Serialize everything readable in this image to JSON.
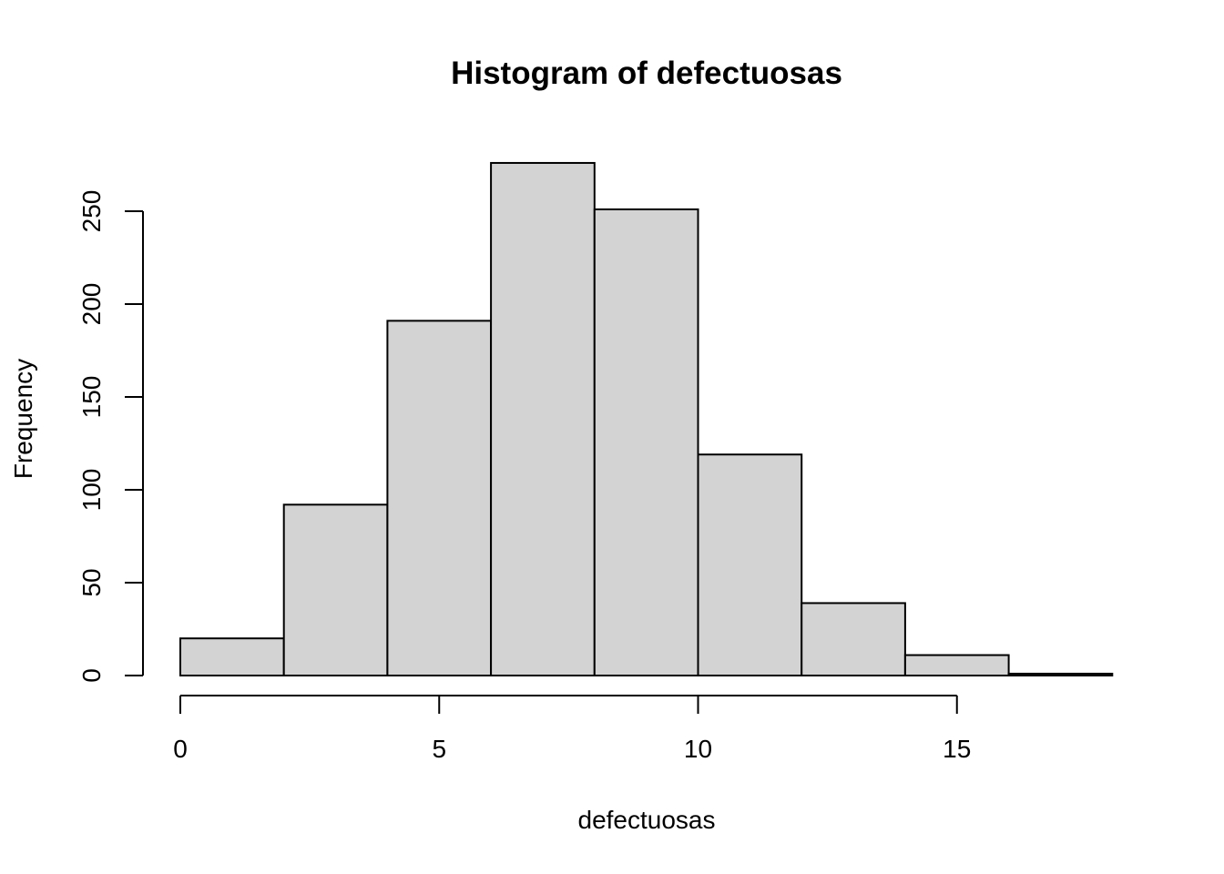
{
  "chart_data": {
    "type": "bar",
    "title": "Histogram of defectuosas",
    "xlabel": "defectuosas",
    "ylabel": "Frequency",
    "bins": [
      {
        "from": 0,
        "to": 2,
        "count": 20
      },
      {
        "from": 2,
        "to": 4,
        "count": 92
      },
      {
        "from": 4,
        "to": 6,
        "count": 191
      },
      {
        "from": 6,
        "to": 8,
        "count": 276
      },
      {
        "from": 8,
        "to": 10,
        "count": 251
      },
      {
        "from": 10,
        "to": 12,
        "count": 119
      },
      {
        "from": 12,
        "to": 14,
        "count": 39
      },
      {
        "from": 14,
        "to": 16,
        "count": 11
      },
      {
        "from": 16,
        "to": 18,
        "count": 1
      }
    ],
    "x_ticks": [
      0,
      5,
      10,
      15
    ],
    "y_ticks": [
      0,
      50,
      100,
      150,
      200,
      250
    ],
    "x_tick_labels": [
      "0",
      "5",
      "10",
      "15"
    ],
    "y_tick_labels": [
      "0",
      "50",
      "100",
      "150",
      "200",
      "250"
    ],
    "xlim": [
      0,
      18
    ],
    "ylim": [
      0,
      276
    ],
    "grid": false,
    "bar_color": "#d3d3d3",
    "edge_color": "#000000"
  }
}
